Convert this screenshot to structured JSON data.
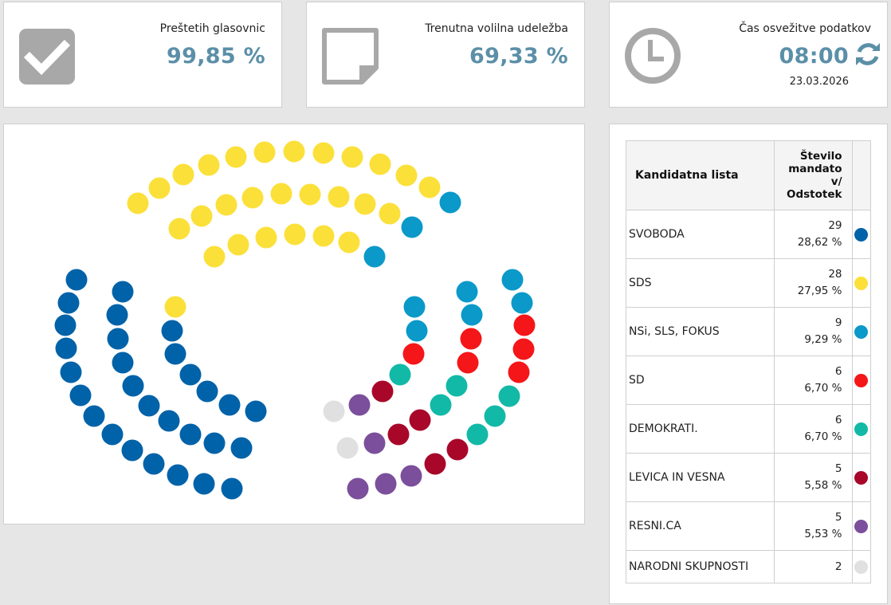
{
  "stats": [
    {
      "label": "Preštetih glasovnic",
      "value": "99,85 %",
      "icon": "checkbox-icon"
    },
    {
      "label": "Trenutna volilna udeležba",
      "value": "69,33 %",
      "icon": "note-icon"
    },
    {
      "label": "Čas osvežitve podatkov",
      "value": "08:00",
      "date": "23.03.2026",
      "icon": "clock-icon",
      "refresh_icon": "refresh-icon"
    }
  ],
  "colors": {
    "accent": "#5b8fa8",
    "SVOBODA": "#0062a8",
    "SDS": "#fbe03a",
    "NSI": "#0a99c9",
    "SD": "#f41618",
    "DEMOKRATI": "#12b9a6",
    "LEVICA": "#a8072a",
    "RESNI": "#7b4f9b",
    "NARODNI": "#e0e0e0"
  },
  "table": {
    "header_name": "Kandidatna lista",
    "header_seats": "Število mandato v/ Odstotek",
    "rows": [
      {
        "name": "SVOBODA",
        "seats": "29",
        "pct": "28,62 %",
        "color": "#0062a8"
      },
      {
        "name": "SDS",
        "seats": "28",
        "pct": "27,95 %",
        "color": "#fbe03a"
      },
      {
        "name": "NSi, SLS, FOKUS",
        "seats": "9",
        "pct": "9,29 %",
        "color": "#0a99c9"
      },
      {
        "name": "SD",
        "seats": "6",
        "pct": "6,70 %",
        "color": "#f41618"
      },
      {
        "name": "DEMOKRATI.",
        "seats": "6",
        "pct": "6,70 %",
        "color": "#12b9a6"
      },
      {
        "name": "LEVICA IN VESNA",
        "seats": "5",
        "pct": "5,58 %",
        "color": "#a8072a"
      },
      {
        "name": "RESNI.CA",
        "seats": "5",
        "pct": "5,53 %",
        "color": "#7b4f9b"
      },
      {
        "name": "NARODNI SKUPNOSTI",
        "seats": "2",
        "pct": "",
        "color": "#e0e0e0"
      }
    ]
  },
  "seat_chart": {
    "parties": [
      {
        "party": "SVOBODA",
        "seats": 29
      },
      {
        "party": "SDS",
        "seats": 28
      },
      {
        "party": "NSi, SLS, FOKUS",
        "seats": 9
      },
      {
        "party": "SD",
        "seats": 6
      },
      {
        "party": "DEMOKRATI.",
        "seats": 6
      },
      {
        "party": "LEVICA IN VESNA",
        "seats": 5
      },
      {
        "party": "RESNI.CA",
        "seats": 5
      },
      {
        "party": "NARODNI SKUPNOSTI",
        "seats": 2
      }
    ]
  }
}
